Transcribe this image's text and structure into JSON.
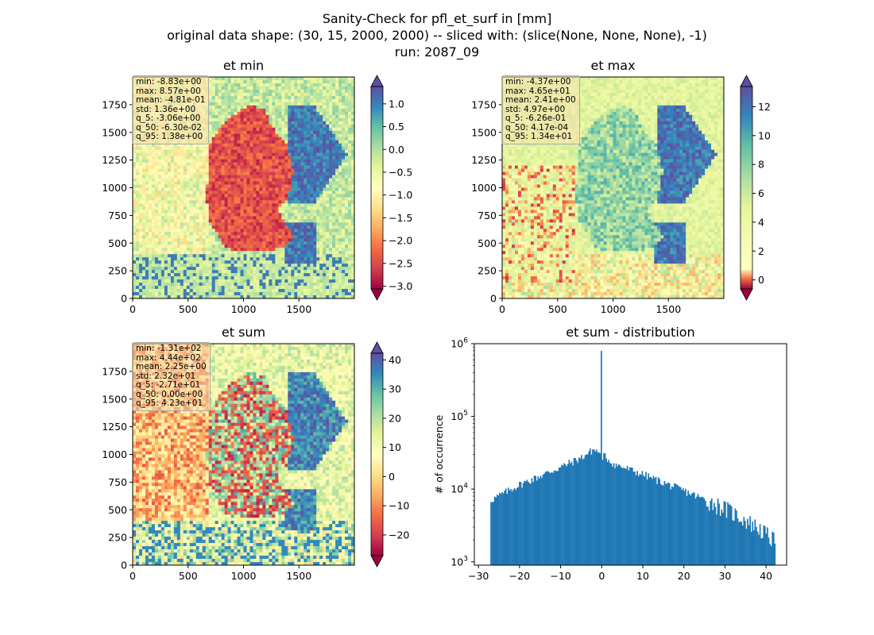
{
  "figure": {
    "title_lines": [
      "Sanity-Check for pfl_et_surf in [mm]",
      "original data shape: (30, 15, 2000, 2000) -- sliced with: (slice(None, None, None), -1)",
      "run: 2087_09"
    ]
  },
  "colormap": "Spectral",
  "panels": [
    {
      "title": "et min",
      "xticks": [
        "0",
        "500",
        "1000",
        "1500"
      ],
      "yticks": [
        "0",
        "250",
        "500",
        "750",
        "1000",
        "1250",
        "1500",
        "1750"
      ],
      "stats": [
        "min: -8.83e+00",
        "max: 8.57e+00",
        "mean: -4.81e-01",
        "std: 1.36e+00",
        "q_5: -3.06e+00",
        "q_50: -6.30e-02",
        "q_95: 1.38e+00"
      ],
      "colorbar_ticks": [
        "1.0",
        "0.5",
        "0.0",
        "−0.5",
        "−1.0",
        "−1.5",
        "−2.0",
        "−2.5",
        "−3.0"
      ]
    },
    {
      "title": "et max",
      "xticks": [
        "0",
        "500",
        "1000",
        "1500"
      ],
      "yticks": [
        "0",
        "250",
        "500",
        "750",
        "1000",
        "1250",
        "1500",
        "1750"
      ],
      "stats": [
        "min: -4.37e+00",
        "max: 4.65e+01",
        "mean: 2.41e+00",
        "std: 4.97e+00",
        "q_5: -6.26e-01",
        "q_50: 4.17e-04",
        "q_95: 1.34e+01"
      ],
      "colorbar_ticks": [
        "12",
        "10",
        "8",
        "6",
        "4",
        "2",
        "0"
      ]
    },
    {
      "title": "et sum",
      "xticks": [
        "0",
        "500",
        "1000",
        "1500"
      ],
      "yticks": [
        "0",
        "250",
        "500",
        "750",
        "1000",
        "1250",
        "1500",
        "1750"
      ],
      "stats": [
        "min: -1.31e+02",
        "max: 4.44e+02",
        "mean: 2.25e+00",
        "std: 2.32e+01",
        "q_5: -2.71e+01",
        "q_50: 0.00e+00",
        "q_95: 4.23e+01"
      ],
      "colorbar_ticks": [
        "40",
        "30",
        "20",
        "10",
        "0",
        "−10",
        "−20"
      ]
    }
  ],
  "chart_data": [
    {
      "type": "heatmap",
      "title": "et min",
      "xlim": [
        0,
        2000
      ],
      "ylim": [
        0,
        2000
      ],
      "colorbar_range": [
        -3.06,
        1.38
      ],
      "colorbar_ticks": [
        1.0,
        0.5,
        0.0,
        -0.5,
        -1.0,
        -1.5,
        -2.0,
        -2.5,
        -3.0
      ]
    },
    {
      "type": "heatmap",
      "title": "et max",
      "xlim": [
        0,
        2000
      ],
      "ylim": [
        0,
        2000
      ],
      "colorbar_range": [
        -0.626,
        13.4
      ],
      "colorbar_ticks": [
        12,
        10,
        8,
        6,
        4,
        2,
        0
      ]
    },
    {
      "type": "heatmap",
      "title": "et sum",
      "xlim": [
        0,
        2000
      ],
      "ylim": [
        0,
        2000
      ],
      "colorbar_range": [
        -27.1,
        42.3
      ],
      "colorbar_ticks": [
        40,
        30,
        20,
        10,
        0,
        -10,
        -20
      ]
    },
    {
      "type": "bar",
      "title": "et sum - distribution",
      "ylabel": "# of occurrence",
      "xlabel": "",
      "yscale": "log",
      "xlim": [
        -31,
        45
      ],
      "ylim": [
        900,
        1000000
      ],
      "xticks": [
        "−30",
        "−20",
        "−10",
        "0",
        "10",
        "20",
        "30",
        "40"
      ],
      "yticks": [
        "10^3",
        "10^4",
        "10^5",
        "10^6"
      ],
      "color": "#1f77b4",
      "bins": {
        "start": -27.1,
        "end": 42.3,
        "profile": [
          [
            -27.1,
            7000
          ],
          [
            -20,
            11500
          ],
          [
            -10,
            20000
          ],
          [
            -5,
            27000
          ],
          [
            -2,
            35000
          ],
          [
            -0.5,
            32000
          ],
          [
            0,
            20000
          ],
          [
            0.5,
            29000
          ],
          [
            3,
            22000
          ],
          [
            10,
            16000
          ],
          [
            20,
            9500
          ],
          [
            30,
            5500
          ],
          [
            38,
            3000
          ],
          [
            42.3,
            1900
          ]
        ],
        "spike": {
          "x": 0,
          "value": 800000
        }
      }
    }
  ]
}
